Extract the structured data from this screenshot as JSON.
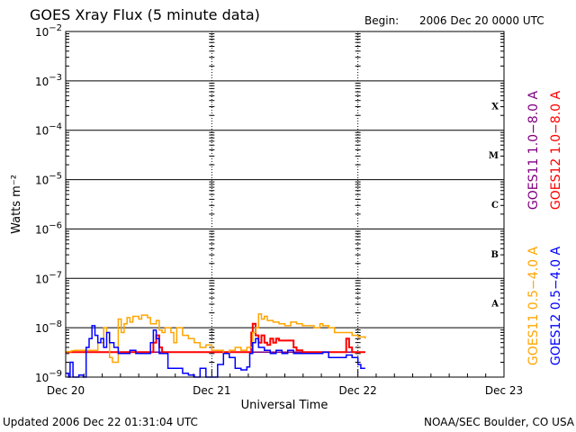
{
  "header": {
    "title": "GOES Xray Flux (5 minute data)",
    "begin_label": "Begin:",
    "begin_value": "2006 Dec 20 0000 UTC"
  },
  "footer": {
    "updated": "Updated 2006 Dec 22 01:31:04 UTC",
    "credit": "NOAA/SEC Boulder, CO USA"
  },
  "colors": {
    "goes11_long": "#800080",
    "goes12_long": "#ff0000",
    "goes11_short": "#ffa500",
    "goes12_short": "#0000ff",
    "axis": "#000000",
    "background": "#ffffff"
  },
  "chart_data": {
    "type": "line",
    "title": "GOES Xray Flux (5 minute data)",
    "xlabel": "Universal Time",
    "ylabel": "Watts m⁻²",
    "y_scale": "log",
    "ylim": [
      1e-09,
      0.01
    ],
    "xlim": [
      "2006-12-20 00:00",
      "2006-12-23 00:00"
    ],
    "x_units": "days since 2006 Dec 20 0000 UTC",
    "x_ticks": [
      {
        "value": 0,
        "label": "Dec 20"
      },
      {
        "value": 1,
        "label": "Dec 21"
      },
      {
        "value": 2,
        "label": "Dec 22"
      },
      {
        "value": 3,
        "label": "Dec 23"
      }
    ],
    "y_ticks": [
      {
        "exp": -9,
        "base": "10",
        "sup": "−9"
      },
      {
        "exp": -8,
        "base": "10",
        "sup": "−8"
      },
      {
        "exp": -7,
        "base": "10",
        "sup": "−7"
      },
      {
        "exp": -6,
        "base": "10",
        "sup": "−6"
      },
      {
        "exp": -5,
        "base": "10",
        "sup": "−5"
      },
      {
        "exp": -4,
        "base": "10",
        "sup": "−4"
      },
      {
        "exp": -3,
        "base": "10",
        "sup": "−3"
      },
      {
        "exp": -2,
        "base": "10",
        "sup": "−2"
      }
    ],
    "flare_classes": [
      {
        "label": "A",
        "exp": -7.5
      },
      {
        "label": "B",
        "exp": -6.5
      },
      {
        "label": "C",
        "exp": -5.5
      },
      {
        "label": "M",
        "exp": -4.5
      },
      {
        "label": "X",
        "exp": -3.5
      }
    ],
    "grid": true,
    "legend_position": "right, vertical",
    "series": [
      {
        "name": "GOES11 1.0−8.0 A",
        "color": "#800080",
        "x": [
          0.0,
          2.05
        ],
        "y": [
          3.2e-09,
          3.2e-09
        ]
      },
      {
        "name": "GOES12 1.0−8.0 A",
        "color": "#ff0000",
        "x": [
          0.0,
          0.58,
          0.6,
          0.62,
          0.64,
          0.66,
          0.7,
          1.0,
          1.25,
          1.27,
          1.28,
          1.3,
          1.32,
          1.34,
          1.36,
          1.38,
          1.4,
          1.42,
          1.44,
          1.46,
          1.5,
          1.52,
          1.54,
          1.56,
          1.58,
          1.62,
          1.65,
          1.68,
          1.75,
          1.8,
          1.88,
          1.9,
          1.92,
          1.94,
          1.96,
          1.98,
          2.0,
          2.02,
          2.05
        ],
        "y": [
          3.2e-09,
          3.2e-09,
          5e-09,
          7e-09,
          4e-09,
          3.2e-09,
          3.2e-09,
          3.2e-09,
          3.2e-09,
          8e-09,
          1.2e-08,
          7e-09,
          5e-09,
          7e-09,
          5e-09,
          4.5e-09,
          6e-09,
          5e-09,
          6e-09,
          5.5e-09,
          5.5e-09,
          5.5e-09,
          5.5e-09,
          4e-09,
          3.5e-09,
          3.2e-09,
          3.2e-09,
          3.2e-09,
          3.2e-09,
          3.2e-09,
          3.2e-09,
          3.2e-09,
          6e-09,
          4e-09,
          3.2e-09,
          3.2e-09,
          3.2e-09,
          3.2e-09,
          3.2e-09
        ]
      },
      {
        "name": "GOES11 0.5−4.0 A",
        "color": "#ffa500",
        "x": [
          0.0,
          0.02,
          0.04,
          0.06,
          0.1,
          0.14,
          0.18,
          0.2,
          0.22,
          0.26,
          0.28,
          0.3,
          0.32,
          0.36,
          0.38,
          0.4,
          0.42,
          0.44,
          0.46,
          0.5,
          0.52,
          0.56,
          0.58,
          0.62,
          0.64,
          0.66,
          0.68,
          0.72,
          0.74,
          0.76,
          0.8,
          0.84,
          0.88,
          0.92,
          0.96,
          1.0,
          1.04,
          1.08,
          1.12,
          1.16,
          1.2,
          1.24,
          1.28,
          1.3,
          1.32,
          1.34,
          1.36,
          1.38,
          1.42,
          1.46,
          1.5,
          1.54,
          1.58,
          1.62,
          1.66,
          1.7,
          1.74,
          1.76,
          1.8,
          1.84,
          1.88,
          1.92,
          1.96,
          2.0,
          2.05
        ],
        "y": [
          3.3e-09,
          3.3e-09,
          3.4e-09,
          3.5e-09,
          3.5e-09,
          3.5e-09,
          3.5e-09,
          3.5e-09,
          5e-09,
          1e-08,
          8e-09,
          2.5e-09,
          2e-09,
          1.5e-08,
          8e-09,
          1.2e-08,
          1.6e-08,
          1.3e-08,
          1.7e-08,
          1.5e-08,
          1.8e-08,
          1.6e-08,
          1.2e-08,
          1.4e-08,
          9e-09,
          8e-09,
          1e-08,
          8e-09,
          5e-09,
          1e-08,
          7e-09,
          6e-09,
          5e-09,
          4e-09,
          4.5e-09,
          3.5e-09,
          3.5e-09,
          3e-09,
          3.5e-09,
          4e-09,
          3.5e-09,
          4e-09,
          8e-09,
          1e-08,
          1.9e-08,
          1.5e-08,
          1.7e-08,
          1.4e-08,
          1.3e-08,
          1.2e-08,
          1.1e-08,
          1.3e-08,
          1.2e-08,
          1.1e-08,
          1.1e-08,
          1e-08,
          1.2e-08,
          1.1e-08,
          1e-08,
          8e-09,
          8e-09,
          8e-09,
          7e-09,
          6.5e-09,
          6e-09
        ]
      },
      {
        "name": "GOES12 0.5−4.0 A",
        "color": "#0000ff",
        "x": [
          0.0,
          0.02,
          0.03,
          0.05,
          0.07,
          0.09,
          0.12,
          0.14,
          0.16,
          0.18,
          0.2,
          0.22,
          0.24,
          0.26,
          0.28,
          0.3,
          0.33,
          0.36,
          0.4,
          0.44,
          0.48,
          0.52,
          0.56,
          0.58,
          0.6,
          0.62,
          0.64,
          0.7,
          0.76,
          0.8,
          0.84,
          0.88,
          0.92,
          0.96,
          1.0,
          1.04,
          1.08,
          1.12,
          1.16,
          1.2,
          1.24,
          1.26,
          1.28,
          1.3,
          1.32,
          1.36,
          1.4,
          1.44,
          1.48,
          1.52,
          1.56,
          1.6,
          1.64,
          1.68,
          1.72,
          1.76,
          1.8,
          1.84,
          1.88,
          1.92,
          1.96,
          2.0,
          2.02,
          2.05
        ],
        "y": [
          1.2e-09,
          1e-09,
          2e-09,
          1e-09,
          9e-10,
          1.1e-09,
          9e-10,
          4e-09,
          6e-09,
          1.1e-08,
          7e-09,
          5e-09,
          6e-09,
          4e-09,
          8e-09,
          5e-09,
          4e-09,
          3e-09,
          3e-09,
          3.5e-09,
          3e-09,
          3e-09,
          3e-09,
          5e-09,
          9e-09,
          6e-09,
          3e-09,
          1.5e-09,
          1.5e-09,
          1.2e-09,
          1.1e-09,
          1e-09,
          1.5e-09,
          9e-10,
          1e-09,
          1.8e-09,
          3e-09,
          2.5e-09,
          1.5e-09,
          1.4e-09,
          1.6e-09,
          3e-09,
          5e-09,
          6e-09,
          4e-09,
          3.5e-09,
          3e-09,
          3.5e-09,
          3e-09,
          3.5e-09,
          3e-09,
          3e-09,
          3e-09,
          3e-09,
          3e-09,
          3.2e-09,
          2.5e-09,
          2.5e-09,
          2.5e-09,
          2.8e-09,
          2.5e-09,
          1.8e-09,
          1.5e-09,
          1.5e-09
        ]
      }
    ]
  }
}
